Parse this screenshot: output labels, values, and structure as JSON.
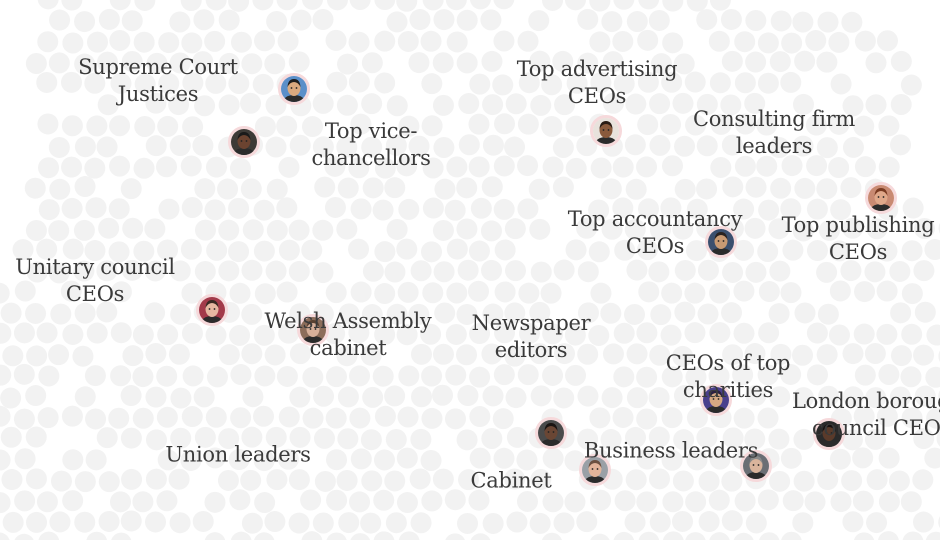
{
  "groups": [
    {
      "id": "supreme-court-justices",
      "lines": [
        "Supreme Court",
        "Justices"
      ]
    },
    {
      "id": "top-vice-chancellors",
      "lines": [
        "Top vice-",
        "chancellors"
      ]
    },
    {
      "id": "top-advertising-ceos",
      "lines": [
        "Top advertising",
        "CEOs"
      ]
    },
    {
      "id": "consulting-firm-leaders",
      "lines": [
        "Consulting firm",
        "leaders"
      ]
    },
    {
      "id": "top-accountancy-ceos",
      "lines": [
        "Top accountancy",
        "CEOs"
      ]
    },
    {
      "id": "top-publishing-ceos",
      "lines": [
        "Top publishing",
        "CEOs"
      ]
    },
    {
      "id": "unitary-council-ceos",
      "lines": [
        "Unitary council",
        "CEOs"
      ]
    },
    {
      "id": "welsh-assembly-cabinet",
      "lines": [
        "Welsh Assembly",
        "cabinet"
      ]
    },
    {
      "id": "newspaper-editors",
      "lines": [
        "Newspaper",
        "editors"
      ]
    },
    {
      "id": "ceos-of-top-charities",
      "lines": [
        "CEOs of top",
        "charities"
      ]
    },
    {
      "id": "london-borough-council-ceos",
      "lines": [
        "London borough",
        "council CEOs"
      ]
    },
    {
      "id": "union-leaders",
      "lines": [
        "Union leaders"
      ]
    },
    {
      "id": "business-leaders",
      "lines": [
        "Business leaders"
      ]
    },
    {
      "id": "cabinet",
      "lines": [
        "Cabinet"
      ]
    }
  ],
  "portraits": [
    {
      "group": "supreme-court-justices",
      "skin": "#d9a97f",
      "hair": "#1e1e1e",
      "bg": "#5b8fc9"
    },
    {
      "group": "top-vice-chancellors",
      "skin": "#6b4330",
      "hair": "#1a1a1a",
      "bg": "#3d3a36"
    },
    {
      "group": "top-advertising-ceos",
      "skin": "#8a5a3c",
      "hair": "#2a1c14",
      "bg": "#e8e2dc"
    },
    {
      "group": "top-publishing-ceos",
      "skin": "#e0a88a",
      "hair": "#7a3b22",
      "bg": "#c98a72"
    },
    {
      "group": "top-accountancy-ceos",
      "skin": "#c99a73",
      "hair": "#2a2220",
      "bg": "#3b4f6e"
    },
    {
      "group": "unitary-council-ceos",
      "skin": "#e6b8a2",
      "hair": "#3a2a24",
      "bg": "#a33a4a"
    },
    {
      "group": "welsh-assembly-cabinet",
      "skin": "#d7b09a",
      "hair": "#5a4232",
      "bg": "#8c6d5a"
    },
    {
      "group": "ceos-of-top-charities",
      "skin": "#d6a883",
      "hair": "#2b2040",
      "bg": "#4a3f8c"
    },
    {
      "group": "london-borough-council-ceos",
      "skin": "#5a3a2a",
      "hair": "#141010",
      "bg": "#2a2a2a"
    },
    {
      "group": "cabinet",
      "skin": "#6a4634",
      "hair": "#1a1412",
      "bg": "#4a4a4a"
    },
    {
      "group": "business-leaders",
      "skin": "#e2b49a",
      "hair": "#6b5040",
      "bg": "#9aa0a6"
    },
    {
      "group": "business-leaders",
      "skin": "#d9b49c",
      "hair": "#8a8a8a",
      "bg": "#6a6e74"
    }
  ],
  "colors": {
    "background": "#ffffff",
    "dot": "#f2f2f2",
    "label": "#3a3a3a",
    "portrait_ring": "#f6d9db"
  }
}
